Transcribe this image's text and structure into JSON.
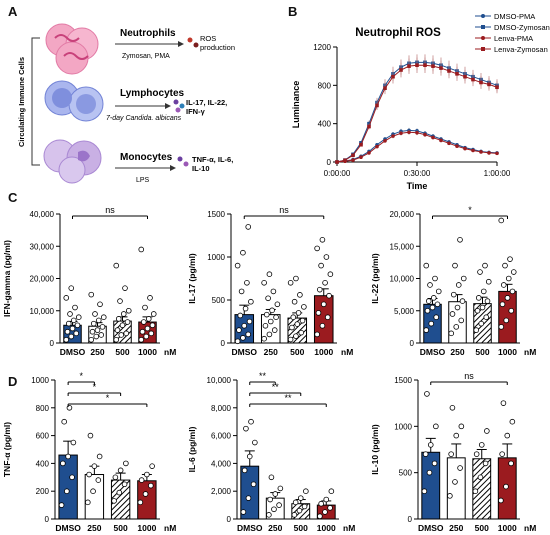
{
  "panels": {
    "A": "A",
    "B": "B",
    "C": "C",
    "D": "D"
  },
  "colors": {
    "dmso": "#1f4e8f",
    "lenva": "#9b1b1f",
    "hatch": "#000000"
  },
  "panelA": {
    "side_label": "Circulating Immune Cells",
    "rows": [
      {
        "cell": "Neutrophils",
        "stim": "Zymosan, PMA",
        "output": "ROS production",
        "color": "#f3a7c4"
      },
      {
        "cell": "Lymphocytes",
        "stim": "7-day Candida. albicans",
        "output": "IL-17, IL-22, IFN-γ",
        "color": "#aab6ee"
      },
      {
        "cell": "Monocytes",
        "stim": "LPS",
        "output": "TNF-α, IL-6, IL-10",
        "color": "#c9b0e4"
      }
    ]
  },
  "chart_data": [
    {
      "id": "B",
      "type": "line",
      "title": "Neutrophil ROS",
      "xlabel": "Time",
      "ylabel": "Luminance",
      "x_ticks": [
        "0:00:00",
        "0:30:00",
        "1:00:00"
      ],
      "x_minutes": [
        0,
        3,
        6,
        9,
        12,
        15,
        18,
        21,
        24,
        27,
        30,
        33,
        36,
        39,
        42,
        45,
        48,
        51,
        54,
        57,
        60
      ],
      "ylim": [
        0,
        1200
      ],
      "yticks": [
        0,
        400,
        800,
        1200
      ],
      "series": [
        {
          "name": "DMSO-PMA",
          "color": "#1f4e8f",
          "marker": "circle",
          "values": [
            0,
            10,
            25,
            60,
            110,
            180,
            240,
            290,
            320,
            330,
            325,
            300,
            270,
            240,
            210,
            180,
            150,
            130,
            110,
            100,
            95
          ]
        },
        {
          "name": "DMSO-Zymosan",
          "color": "#1f4e8f",
          "marker": "square",
          "values": [
            0,
            20,
            80,
            200,
            400,
            620,
            800,
            920,
            990,
            1030,
            1040,
            1040,
            1030,
            1010,
            980,
            950,
            920,
            890,
            860,
            830,
            800
          ]
        },
        {
          "name": "Lenva-PMA",
          "color": "#9b1b1f",
          "marker": "circle",
          "values": [
            0,
            8,
            20,
            50,
            95,
            160,
            220,
            270,
            300,
            310,
            305,
            285,
            255,
            225,
            195,
            165,
            140,
            120,
            105,
            95,
            90
          ]
        },
        {
          "name": "Lenva-Zymosan",
          "color": "#9b1b1f",
          "marker": "square",
          "values": [
            0,
            18,
            70,
            180,
            370,
            590,
            770,
            890,
            960,
            1000,
            1010,
            1010,
            1000,
            980,
            950,
            920,
            890,
            860,
            830,
            810,
            780
          ]
        }
      ]
    },
    {
      "id": "C1",
      "type": "bar",
      "ylabel": "IFN-gamma (pg/ml)",
      "categories": [
        "DMSO",
        "250",
        "500",
        "1000"
      ],
      "unit": "nM",
      "values": [
        5500,
        5200,
        6800,
        6500
      ],
      "errors": [
        1200,
        1100,
        1300,
        1600
      ],
      "ylim": [
        0,
        40000
      ],
      "yticks": [
        "0",
        "10,000",
        "20,000",
        "30,000",
        "40,000"
      ],
      "ytick_values": [
        0,
        10000,
        20000,
        30000,
        40000
      ],
      "sig": [
        {
          "from": 0,
          "to": 3,
          "label": "ns"
        }
      ],
      "points": [
        [
          1000,
          2000,
          3000,
          3500,
          4500,
          5500,
          6000,
          7000,
          8000,
          9000,
          11000,
          14000,
          17000
        ],
        [
          1000,
          2000,
          2500,
          3500,
          4000,
          5000,
          6000,
          7000,
          8000,
          9000,
          12000,
          15000
        ],
        [
          1000,
          2500,
          3000,
          4000,
          5500,
          6500,
          7500,
          9000,
          10000,
          13000,
          17000,
          24000
        ],
        [
          1000,
          2000,
          3000,
          3500,
          4500,
          5500,
          6500,
          7500,
          9000,
          11000,
          14000,
          29000
        ]
      ]
    },
    {
      "id": "C2",
      "type": "bar",
      "ylabel": "IL-17 (pg/ml)",
      "categories": [
        "DMSO",
        "250",
        "500",
        "1000"
      ],
      "unit": "nM",
      "values": [
        330,
        330,
        290,
        550
      ],
      "errors": [
        110,
        60,
        60,
        80
      ],
      "ylim": [
        0,
        1500
      ],
      "yticks": [
        "0",
        "500",
        "1000",
        "1500"
      ],
      "ytick_values": [
        0,
        500,
        1000,
        1500
      ],
      "sig": [
        {
          "from": 0,
          "to": 3,
          "label": "ns"
        }
      ],
      "points": [
        [
          20,
          60,
          100,
          150,
          200,
          250,
          320,
          400,
          480,
          600,
          700,
          900,
          1050,
          1350
        ],
        [
          50,
          100,
          150,
          200,
          250,
          300,
          330,
          380,
          450,
          520,
          600,
          700,
          800
        ],
        [
          40,
          80,
          120,
          180,
          220,
          260,
          300,
          350,
          420,
          480,
          560,
          700,
          750
        ],
        [
          100,
          200,
          300,
          350,
          450,
          550,
          620,
          700,
          800,
          900,
          1000,
          1100,
          1200
        ]
      ]
    },
    {
      "id": "C3",
      "type": "bar",
      "ylabel": "IL-22 (pg/ml)",
      "categories": [
        "DMSO",
        "250",
        "500",
        "1000"
      ],
      "unit": "nM",
      "values": [
        6000,
        6400,
        6100,
        8000
      ],
      "errors": [
        900,
        1100,
        1000,
        1100
      ],
      "ylim": [
        0,
        20000
      ],
      "yticks": [
        "0",
        "5,000",
        "10,000",
        "15,000",
        "20,000"
      ],
      "ytick_values": [
        0,
        5000,
        10000,
        15000,
        20000
      ],
      "sig": [
        {
          "from": 0,
          "to": 3,
          "label": "*"
        }
      ],
      "points": [
        [
          2000,
          3000,
          4000,
          5000,
          5500,
          6000,
          6500,
          7000,
          8000,
          9000,
          10000,
          12000
        ],
        [
          1500,
          2500,
          3500,
          4500,
          5500,
          6500,
          7500,
          9000,
          10000,
          12000,
          16000
        ],
        [
          2000,
          3000,
          4000,
          5000,
          5500,
          6500,
          7000,
          8000,
          9500,
          11000,
          12000
        ],
        [
          2500,
          3500,
          5000,
          6000,
          7000,
          8000,
          9000,
          10000,
          11000,
          12000,
          13000,
          19000
        ]
      ]
    },
    {
      "id": "D1",
      "type": "bar",
      "ylabel": "TNF-α (pg/ml)",
      "categories": [
        "DMSO",
        "250",
        "500",
        "1000"
      ],
      "unit": "nM",
      "values": [
        460,
        320,
        280,
        275
      ],
      "errors": [
        100,
        60,
        50,
        45
      ],
      "ylim": [
        0,
        1000
      ],
      "yticks": [
        "0",
        "200",
        "400",
        "600",
        "800",
        "1000"
      ],
      "ytick_values": [
        0,
        200,
        400,
        600,
        800,
        1000
      ],
      "sig": [
        {
          "from": 0,
          "to": 1,
          "label": "*"
        },
        {
          "from": 0,
          "to": 2,
          "label": "*"
        },
        {
          "from": 0,
          "to": 3,
          "label": "*"
        }
      ],
      "points": [
        [
          100,
          200,
          300,
          400,
          450,
          550,
          700,
          800
        ],
        [
          120,
          200,
          280,
          320,
          380,
          450,
          600
        ],
        [
          130,
          190,
          250,
          300,
          350,
          400
        ],
        [
          120,
          180,
          240,
          280,
          320,
          380
        ]
      ]
    },
    {
      "id": "D2",
      "type": "bar",
      "ylabel": "IL-6 (pg/ml)",
      "categories": [
        "DMSO",
        "250",
        "500",
        "1000"
      ],
      "unit": "nM",
      "values": [
        3800,
        1500,
        1100,
        1000
      ],
      "errors": [
        1100,
        400,
        300,
        300
      ],
      "ylim": [
        0,
        10000
      ],
      "yticks": [
        "0",
        "2,000",
        "4,000",
        "6,000",
        "8,000",
        "10,000"
      ],
      "ytick_values": [
        0,
        2000,
        4000,
        6000,
        8000,
        10000
      ],
      "sig": [
        {
          "from": 0,
          "to": 1,
          "label": "**"
        },
        {
          "from": 0,
          "to": 2,
          "label": "**"
        },
        {
          "from": 0,
          "to": 3,
          "label": "**"
        }
      ],
      "points": [
        [
          500,
          1500,
          2500,
          3500,
          4500,
          5500,
          6500,
          7000
        ],
        [
          300,
          700,
          1000,
          1400,
          1800,
          2200,
          3000
        ],
        [
          300,
          600,
          900,
          1200,
          1500,
          2000
        ],
        [
          200,
          500,
          800,
          1100,
          1400,
          2000
        ]
      ]
    },
    {
      "id": "D3",
      "type": "bar",
      "ylabel": "IL-10 (pg/ml)",
      "categories": [
        "DMSO",
        "250",
        "500",
        "1000"
      ],
      "unit": "nM",
      "values": [
        720,
        660,
        650,
        660
      ],
      "errors": [
        150,
        150,
        100,
        150
      ],
      "ylim": [
        0,
        1500
      ],
      "yticks": [
        "0",
        "500",
        "1000",
        "1500"
      ],
      "ytick_values": [
        0,
        500,
        1000,
        1500
      ],
      "sig": [
        {
          "from": 0,
          "to": 3,
          "label": "ns"
        }
      ],
      "points": [
        [
          300,
          500,
          600,
          700,
          800,
          1000,
          1350
        ],
        [
          250,
          400,
          550,
          700,
          900,
          1000,
          1200
        ],
        [
          300,
          450,
          600,
          700,
          800,
          950
        ],
        [
          200,
          350,
          600,
          700,
          900,
          1050,
          1250
        ]
      ]
    }
  ]
}
